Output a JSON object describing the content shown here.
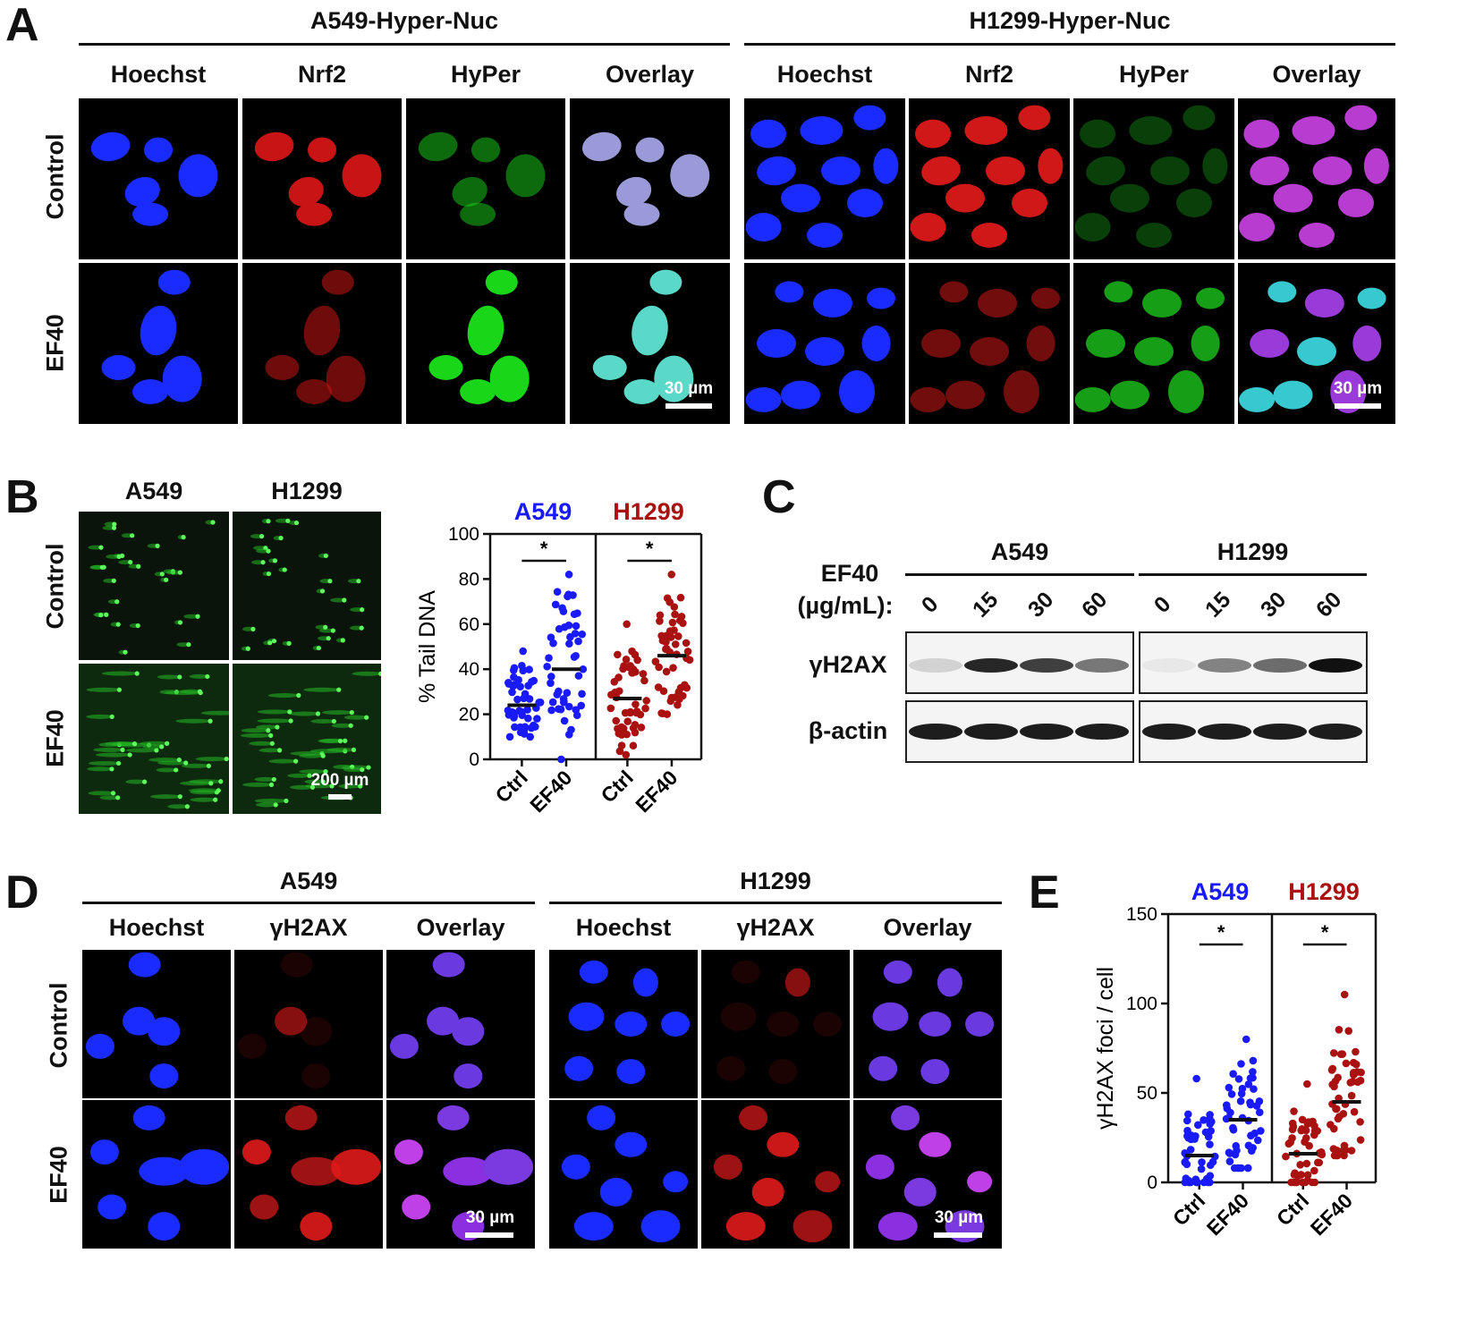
{
  "panelA": {
    "letter": "A",
    "groups": [
      {
        "title": "A549-Hyper-Nuc",
        "channels": [
          "Hoechst",
          "Nrf2",
          "HyPer",
          "Overlay"
        ],
        "scale": "30 µm"
      },
      {
        "title": "H1299-Hyper-Nuc",
        "channels": [
          "Hoechst",
          "Nrf2",
          "HyPer",
          "Overlay"
        ],
        "scale": "30 µm"
      }
    ],
    "rows": [
      "Control",
      "EF40"
    ]
  },
  "panelB": {
    "letter": "B",
    "cols": [
      "A549",
      "H1299"
    ],
    "rows": [
      "Control",
      "EF40"
    ],
    "scale": "200 µm"
  },
  "panelC": {
    "letter": "C",
    "treatment_label_1": "EF40",
    "treatment_label_2": "(µg/mL):",
    "groups": [
      "A549",
      "H1299"
    ],
    "doses": [
      "0",
      "15",
      "30",
      "60",
      "0",
      "15",
      "30",
      "60"
    ],
    "proteins": [
      "γH2AX",
      "β-actin"
    ],
    "gh2ax_intensity": [
      0.15,
      0.9,
      0.8,
      0.55,
      0.05,
      0.5,
      0.6,
      1.0
    ]
  },
  "panelD": {
    "letter": "D",
    "groups": [
      {
        "title": "A549",
        "channels": [
          "Hoechst",
          "γH2AX",
          "Overlay"
        ],
        "scale": "30 µm"
      },
      {
        "title": "H1299",
        "channels": [
          "Hoechst",
          "γH2AX",
          "Overlay"
        ],
        "scale": "30 µm"
      }
    ],
    "rows": [
      "Control",
      "EF40"
    ]
  },
  "panelE": {
    "letter": "E"
  },
  "colors": {
    "a549": "#1a1aff",
    "h1299": "#aa1111",
    "nuc_blue": "#1a2bff",
    "red": "#ff1a1a",
    "green": "#19e619"
  },
  "chart_data": [
    {
      "id": "B",
      "type": "scatter",
      "ylabel": "% Tail DNA",
      "ylim": [
        0,
        100
      ],
      "yticks": [
        0,
        20,
        40,
        60,
        80,
        100
      ],
      "facets": [
        {
          "name": "A549",
          "color": "#1a1aff",
          "categories": [
            "Ctrl",
            "EF40"
          ],
          "medians": [
            24,
            40
          ],
          "ranges": [
            [
              10,
              48
            ],
            [
              0,
              82
            ]
          ],
          "significance": "*"
        },
        {
          "name": "H1299",
          "color": "#aa1111",
          "categories": [
            "Ctrl",
            "EF40"
          ],
          "medians": [
            27,
            46
          ],
          "ranges": [
            [
              2,
              60
            ],
            [
              20,
              82
            ]
          ],
          "significance": "*"
        }
      ]
    },
    {
      "id": "E",
      "type": "scatter",
      "ylabel": "γH2AX foci / cell",
      "ylim": [
        0,
        150
      ],
      "yticks": [
        0,
        50,
        100,
        150
      ],
      "facets": [
        {
          "name": "A549",
          "color": "#1a1aff",
          "categories": [
            "Ctrl",
            "EF40"
          ],
          "medians": [
            15,
            35
          ],
          "ranges": [
            [
              0,
              58
            ],
            [
              8,
              80
            ]
          ],
          "significance": "*"
        },
        {
          "name": "H1299",
          "color": "#aa1111",
          "categories": [
            "Ctrl",
            "EF40"
          ],
          "medians": [
            16,
            45
          ],
          "ranges": [
            [
              0,
              55
            ],
            [
              15,
              105
            ]
          ],
          "significance": "*"
        }
      ]
    }
  ]
}
